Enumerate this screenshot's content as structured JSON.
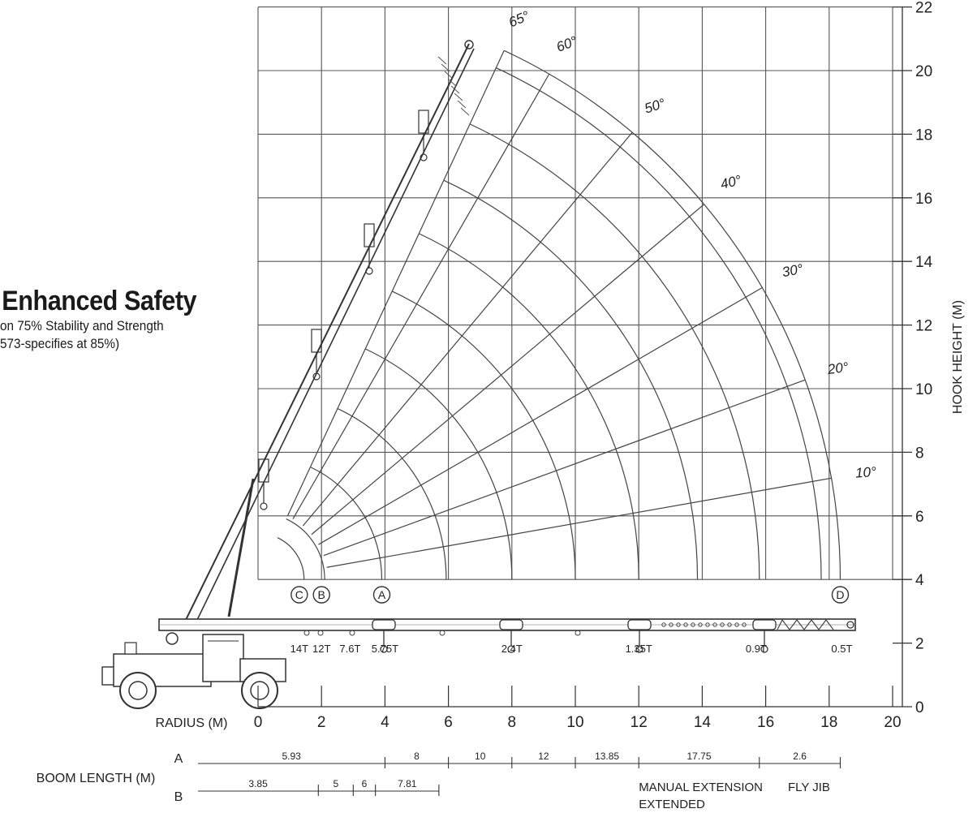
{
  "header": {
    "title": "o Enhanced Safety",
    "line1": "on 75% Stability and Strength",
    "line2": "573-specifies at 85%)"
  },
  "chart_data": {
    "type": "load-radius-diagram",
    "x_axis": {
      "label": "RADIUS (M)",
      "ticks": [
        "0",
        "2",
        "4",
        "6",
        "8",
        "10",
        "12",
        "14",
        "16",
        "18",
        "20"
      ],
      "range": [
        0,
        20
      ]
    },
    "y_axis": {
      "label": "HOOK HEIGHT (M)",
      "ticks": [
        "0",
        "2",
        "4",
        "6",
        "8",
        "10",
        "12",
        "14",
        "16",
        "18",
        "20",
        "22"
      ],
      "range": [
        0,
        22
      ]
    },
    "boom_angles": [
      "10°",
      "20°",
      "30°",
      "40°",
      "50°",
      "60°",
      "65°"
    ],
    "boom_angle_values": [
      10,
      20,
      30,
      40,
      50,
      60,
      65
    ],
    "arc_radii": [
      1.45,
      2.1,
      3.9,
      5.93,
      8,
      10,
      12,
      13.85,
      15.8,
      17.75,
      18.35
    ],
    "position_markers": [
      {
        "label": "C",
        "radius": 1.3
      },
      {
        "label": "B",
        "radius": 2.0
      },
      {
        "label": "A",
        "radius": 3.9
      },
      {
        "label": "D",
        "radius": 18.35
      }
    ],
    "capacity_labels": [
      {
        "label": "14T",
        "radius": 1.3
      },
      {
        "label": "12T",
        "radius": 2.0
      },
      {
        "label": "7.6T",
        "radius": 2.9
      },
      {
        "label": "5.75T",
        "radius": 4.0
      },
      {
        "label": "2.4T",
        "radius": 8.0
      },
      {
        "label": "1.35T",
        "radius": 12.0
      },
      {
        "label": "0.9T",
        "radius": 15.7
      },
      {
        "label": "0.5T",
        "radius": 18.4
      }
    ],
    "boom_length": {
      "label": "BOOM LENGTH (M)",
      "row_a_label": "A",
      "row_b_label": "B",
      "row_a": [
        "5.93",
        "8",
        "10",
        "12",
        "13.85",
        "17.75",
        "2.6"
      ],
      "row_a_bounds": [
        -2.1,
        4,
        6,
        8,
        10,
        12,
        15.8,
        18.35
      ],
      "row_b": [
        "3.85",
        "5",
        "6",
        "7.81"
      ],
      "row_b_bounds": [
        -2.1,
        1.9,
        3,
        3.7,
        5.7
      ],
      "notes": [
        "MANUAL EXTENSION",
        "EXTENDED",
        "FLY JIB"
      ]
    }
  }
}
